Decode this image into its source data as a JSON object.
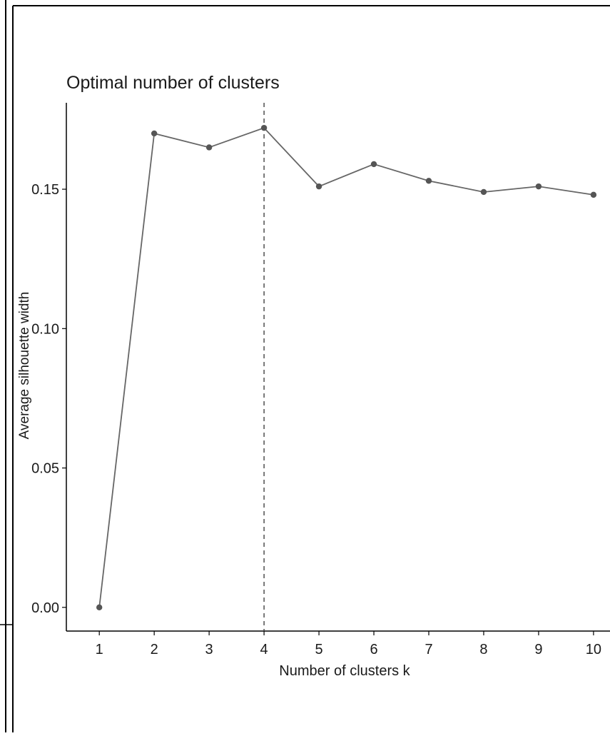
{
  "chart_data": {
    "type": "line",
    "title": "Optimal number of clusters",
    "xlabel": "Number of clusters k",
    "ylabel": "Average silhouette width",
    "x": [
      1,
      2,
      3,
      4,
      5,
      6,
      7,
      8,
      9,
      10
    ],
    "series": [
      {
        "values": [
          0.0,
          0.17,
          0.165,
          0.172,
          0.151,
          0.159,
          0.153,
          0.149,
          0.151,
          0.148
        ]
      }
    ],
    "xticks": [
      "1",
      "2",
      "3",
      "4",
      "5",
      "6",
      "7",
      "8",
      "9",
      "10"
    ],
    "yticks": [
      "0.00",
      "0.05",
      "0.10",
      "0.15"
    ],
    "ytick_values": [
      0.0,
      0.05,
      0.1,
      0.15
    ],
    "xlim": [
      0.4,
      10.3
    ],
    "ylim": [
      -0.0085,
      0.181
    ],
    "optimal_k": 4,
    "grid": false,
    "legend": "none",
    "colors": {
      "line": "#666666",
      "point": "#555555",
      "axis": "#000000",
      "vline": "#333333"
    }
  }
}
